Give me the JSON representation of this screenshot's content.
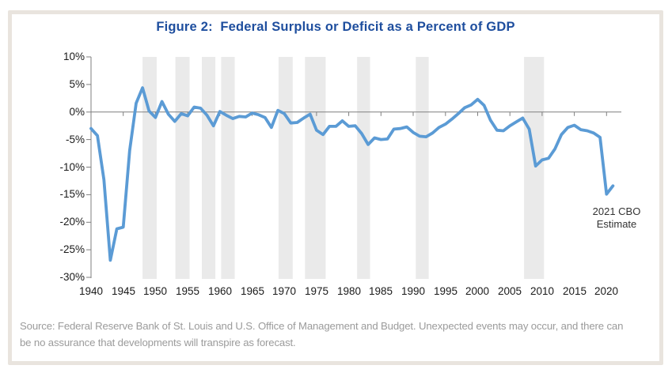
{
  "figure": {
    "title": "Figure 2:  Federal Surplus or Deficit as a Percent of GDP"
  },
  "annotation": {
    "line1": "2021 CBO",
    "line2": "Estimate"
  },
  "source_note": {
    "line1": "Source: Federal Reserve Bank of St. Louis and U.S. Office of Management and Budget. Unexpected events may occur, and there can",
    "line2": "be no assurance that developments will transpire as forecast."
  },
  "colors": {
    "title_blue": "#1e4e9e",
    "line_blue": "#5b9bd5",
    "recession_band_gray": "#eaeaea",
    "axis_gray": "#7f7f7f",
    "tick_label_color": "#1a1a1a",
    "source_gray": "#9b9b9b",
    "card_border_beige": "#e9e4de"
  },
  "chart_data": {
    "type": "line",
    "title": "Figure 2:  Federal Surplus or Deficit as a Percent of GDP",
    "x_range": [
      1940,
      2022.3
    ],
    "y_range": [
      -30,
      10
    ],
    "grid": "off",
    "zero_axis_line": true,
    "legend": "none",
    "y_tick_values": [
      10,
      5,
      0,
      -5,
      -10,
      -15,
      -20,
      -25,
      -30
    ],
    "y_tick_labels": [
      "10%",
      "5%",
      "0%",
      "-5%",
      "-10%",
      "-15%",
      "-20%",
      "-25%",
      "-30%"
    ],
    "x_tick_values": [
      1940,
      1945,
      1950,
      1955,
      1960,
      1965,
      1970,
      1975,
      1980,
      1985,
      1990,
      1995,
      2000,
      2005,
      2010,
      2015,
      2020
    ],
    "x_tick_labels": [
      "1940",
      "1945",
      "1950",
      "1955",
      "1960",
      "1965",
      "1970",
      "1975",
      "1980",
      "1985",
      "1990",
      "1995",
      "2000",
      "2005",
      "2010",
      "2015",
      "2020"
    ],
    "recession_bands": [
      [
        1948.0,
        1950.2
      ],
      [
        1953.1,
        1955.3
      ],
      [
        1957.2,
        1959.3
      ],
      [
        1960.2,
        1962.3
      ],
      [
        1969.1,
        1971.3
      ],
      [
        1973.2,
        1976.4
      ],
      [
        1981.3,
        1983.3
      ],
      [
        1990.4,
        1992.4
      ],
      [
        2007.2,
        2010.3
      ]
    ],
    "series": [
      {
        "name": "Federal surplus or deficit as a percent of GDP",
        "start_year": 1940,
        "end_year": 2021,
        "last_point_label": "2021 CBO Estimate",
        "values": [
          -3.0,
          -4.3,
          -12.3,
          -26.9,
          -21.2,
          -20.9,
          -7.0,
          1.6,
          4.4,
          0.2,
          -1.0,
          1.9,
          -0.4,
          -1.7,
          -0.3,
          -0.7,
          0.9,
          0.7,
          -0.6,
          -2.5,
          0.1,
          -0.6,
          -1.2,
          -0.8,
          -0.9,
          -0.2,
          -0.5,
          -1.0,
          -2.8,
          0.3,
          -0.3,
          -2.0,
          -1.9,
          -1.1,
          -0.4,
          -3.3,
          -4.1,
          -2.6,
          -2.6,
          -1.6,
          -2.6,
          -2.5,
          -3.9,
          -5.9,
          -4.7,
          -5.0,
          -4.9,
          -3.1,
          -3.0,
          -2.7,
          -3.7,
          -4.4,
          -4.5,
          -3.8,
          -2.8,
          -2.2,
          -1.3,
          -0.3,
          0.8,
          1.3,
          2.3,
          1.2,
          -1.5,
          -3.3,
          -3.4,
          -2.5,
          -1.8,
          -1.1,
          -3.1,
          -9.8,
          -8.7,
          -8.4,
          -6.7,
          -4.1,
          -2.8,
          -2.4,
          -3.2,
          -3.4,
          -3.8,
          -4.6,
          -14.9,
          -13.4
        ]
      }
    ]
  }
}
